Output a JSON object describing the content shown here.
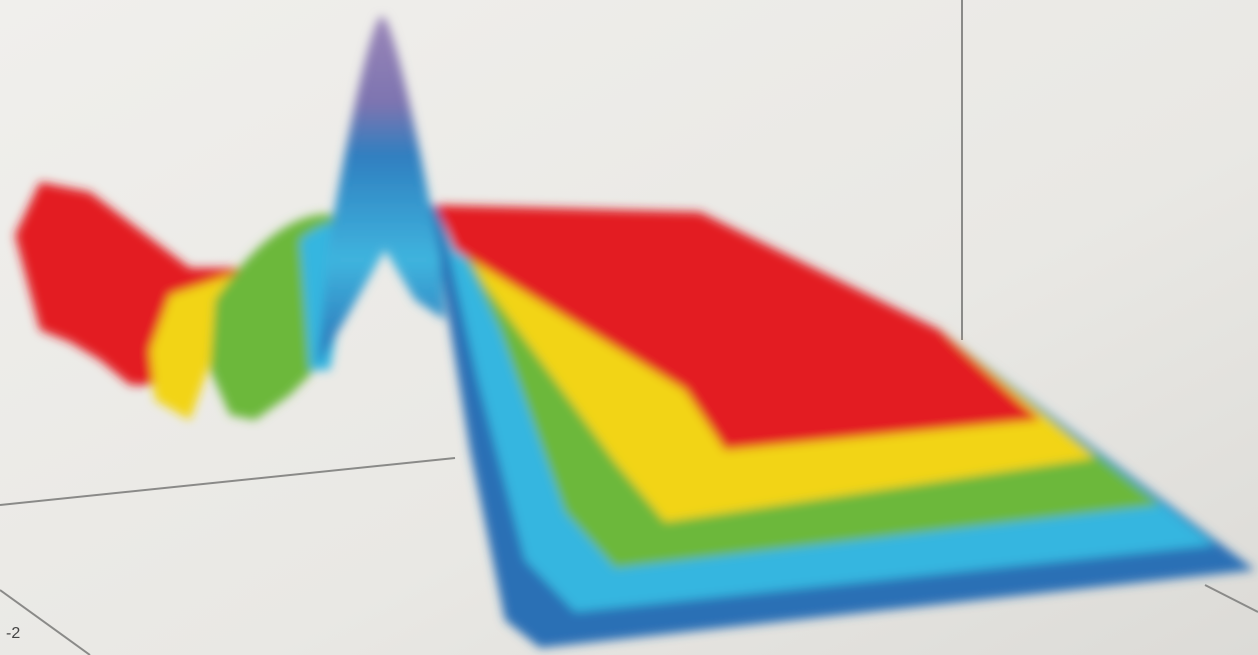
{
  "photo": {
    "tick_label": "-2"
  }
}
